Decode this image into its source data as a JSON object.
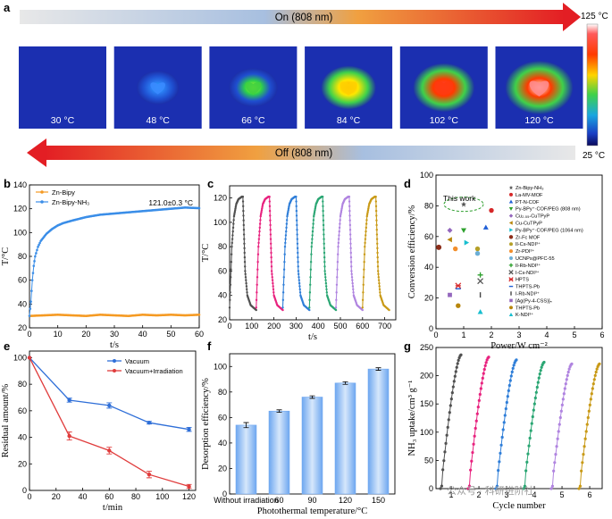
{
  "panel_a": {
    "letter": "a",
    "on_label": "On (808 nm)",
    "off_label": "Off (808 nm)",
    "colorbar_max": "125 °C",
    "colorbar_min": "25 °C",
    "tiles": [
      {
        "temp": "30 °C",
        "level": 0.0
      },
      {
        "temp": "48 °C",
        "level": 0.2
      },
      {
        "temp": "66 °C",
        "level": 0.4
      },
      {
        "temp": "84 °C",
        "level": 0.6
      },
      {
        "temp": "102 °C",
        "level": 0.8
      },
      {
        "temp": "120 °C",
        "level": 1.0
      }
    ]
  },
  "watermark": "公众号 · 科研进阶社",
  "chart_data": [
    {
      "panel": "b",
      "type": "line",
      "xlabel": "t/s",
      "ylabel": "T/°C",
      "xlim": [
        0,
        60
      ],
      "ylim": [
        20,
        140
      ],
      "xticks": [
        "0",
        "10",
        "20",
        "30",
        "40",
        "50",
        "60"
      ],
      "yticks": [
        "20",
        "40",
        "60",
        "80",
        "100",
        "120",
        "140"
      ],
      "annotation": "121.0±0.3 °C",
      "series": [
        {
          "name": "Zn-Bipy",
          "color": "#f59a23",
          "x": [
            0,
            5,
            10,
            15,
            20,
            25,
            30,
            35,
            40,
            45,
            50,
            55,
            60
          ],
          "y": [
            30,
            30.5,
            31,
            30.5,
            30,
            31,
            30.5,
            30,
            31,
            30.5,
            31,
            30.5,
            31
          ]
        },
        {
          "name": "Zn-Bipy-NH₃",
          "color": "#3b8ee8",
          "x": [
            0,
            0.5,
            1,
            1.5,
            2,
            3,
            4,
            5,
            6,
            8,
            10,
            12,
            15,
            20,
            25,
            30,
            35,
            40,
            45,
            50,
            55,
            60
          ],
          "y": [
            30,
            42,
            60,
            72,
            80,
            88,
            93,
            96,
            99,
            103,
            106,
            108,
            110,
            113,
            115,
            116,
            117,
            118,
            119,
            120,
            121,
            120.5
          ]
        }
      ]
    },
    {
      "panel": "c",
      "type": "line",
      "xlabel": "t/s",
      "ylabel": "T/°C",
      "xlim": [
        0,
        750
      ],
      "ylim": [
        20,
        130
      ],
      "xticks": [
        "0",
        "100",
        "200",
        "300",
        "400",
        "500",
        "600",
        "700"
      ],
      "yticks": [
        "20",
        "40",
        "60",
        "80",
        "100",
        "120"
      ],
      "cycles": [
        {
          "start": 0,
          "color": "#505050"
        },
        {
          "start": 120,
          "color": "#e8237f"
        },
        {
          "start": 240,
          "color": "#2f7ed8"
        },
        {
          "start": 360,
          "color": "#2aa673"
        },
        {
          "start": 480,
          "color": "#b084e0"
        },
        {
          "start": 600,
          "color": "#c99a17"
        }
      ],
      "cycle_profile": {
        "t": [
          0,
          10,
          20,
          30,
          40,
          55,
          60,
          65,
          70,
          80,
          95,
          120
        ],
        "T": [
          30,
          80,
          105,
          115,
          119,
          121,
          121,
          90,
          60,
          40,
          32,
          28
        ]
      }
    },
    {
      "panel": "d",
      "type": "scatter",
      "xlabel": "Power/W cm⁻²",
      "ylabel": "Conversion efficiency/%",
      "xlim": [
        0,
        6
      ],
      "ylim": [
        0,
        100
      ],
      "xticks": [
        "0",
        "1",
        "2",
        "3",
        "4",
        "5",
        "6"
      ],
      "yticks": [
        "0",
        "20",
        "40",
        "60",
        "80",
        "100"
      ],
      "annotation": "This work",
      "points": [
        {
          "name": "Zn-Bipy-NH₃",
          "x": 1.0,
          "y": 81,
          "color": "#555555",
          "marker": "star"
        },
        {
          "name": "La-MV-MOF",
          "x": 2.0,
          "y": 77,
          "color": "#d62728",
          "marker": "circle"
        },
        {
          "name": "PT-N-COF",
          "x": 1.8,
          "y": 66,
          "color": "#1f5fd6",
          "marker": "triangle"
        },
        {
          "name": "Py-BPy⁺·COF/PEG (808 nm)",
          "x": 1.0,
          "y": 64,
          "color": "#2ca02c",
          "marker": "tri-down"
        },
        {
          "name": "Cu₂.₅₅-CuTPyP",
          "x": 0.5,
          "y": 64,
          "color": "#9467bd",
          "marker": "diamond"
        },
        {
          "name": "Cu-CuTPyP",
          "x": 0.5,
          "y": 58,
          "color": "#b8860b",
          "marker": "tri-left"
        },
        {
          "name": "Py-BPy⁺·COF/PEG (1064 nm)",
          "x": 1.1,
          "y": 56,
          "color": "#17becf",
          "marker": "tri-right"
        },
        {
          "name": "Zr-Fc MOF",
          "x": 0.1,
          "y": 53,
          "color": "#8c2d19",
          "marker": "hexagon"
        },
        {
          "name": "Il-Cs-NDI³⁺",
          "x": 1.5,
          "y": 52,
          "color": "#b5a028",
          "marker": "circle"
        },
        {
          "name": "Zr-PDI³⁺",
          "x": 0.7,
          "y": 52,
          "color": "#f28e2b",
          "marker": "circle"
        },
        {
          "name": "UCNPs@PFC-55",
          "x": 1.5,
          "y": 49,
          "color": "#6baed6",
          "marker": "circle"
        },
        {
          "name": "Il-Rb-NDI³⁺",
          "x": 1.6,
          "y": 35,
          "color": "#2ca02c",
          "marker": "plus"
        },
        {
          "name": "I-Cs-NDI³⁺",
          "x": 1.6,
          "y": 31,
          "color": "#555555",
          "marker": "x"
        },
        {
          "name": "HPTS",
          "x": 0.8,
          "y": 28,
          "color": "#d62728",
          "marker": "asterisk"
        },
        {
          "name": "THPTS-Pb",
          "x": 0.8,
          "y": 26,
          "color": "#1f5fd6",
          "marker": "hline"
        },
        {
          "name": "I-Rb-NDI³⁺",
          "x": 1.6,
          "y": 22,
          "color": "#444444",
          "marker": "vline"
        },
        {
          "name": "[Ag(Py-4-CSS)]ₙ",
          "x": 0.5,
          "y": 22,
          "color": "#9467bd",
          "marker": "square"
        },
        {
          "name": "THPTS-Pb",
          "x": 0.8,
          "y": 15,
          "color": "#b8860b",
          "marker": "circle"
        },
        {
          "name": "K-NDI³⁺",
          "x": 1.6,
          "y": 11,
          "color": "#17becf",
          "marker": "triangle"
        }
      ]
    },
    {
      "panel": "e",
      "type": "line",
      "xlabel": "t/min",
      "ylabel": "Residual amount/%",
      "xlim": [
        0,
        125
      ],
      "ylim": [
        0,
        105
      ],
      "xticks": [
        "0",
        "20",
        "40",
        "60",
        "80",
        "100",
        "120"
      ],
      "yticks": [
        "0",
        "20",
        "40",
        "60",
        "80",
        "100"
      ],
      "series": [
        {
          "name": "Vacuum",
          "color": "#2f6fd8",
          "x": [
            0,
            30,
            60,
            90,
            120
          ],
          "y": [
            100,
            68,
            64,
            51,
            46
          ],
          "err": [
            0,
            1.5,
            2,
            1,
            1.5
          ]
        },
        {
          "name": "Vacuum+Irradiation",
          "color": "#e03c3c",
          "x": [
            0,
            30,
            60,
            90,
            120
          ],
          "y": [
            100,
            41,
            30,
            12,
            3
          ],
          "err": [
            0,
            3,
            2.5,
            2.5,
            1.5
          ]
        }
      ]
    },
    {
      "panel": "f",
      "type": "bar",
      "xlabel": "Photothermal temperature/°C",
      "ylabel": "Desorption efficiency/%",
      "ylim": [
        0,
        110
      ],
      "yticks": [
        "0",
        "20",
        "40",
        "60",
        "80",
        "100"
      ],
      "categories": [
        "Without irradiation",
        "60",
        "90",
        "120",
        "150"
      ],
      "values": [
        54,
        65,
        76,
        87,
        98
      ],
      "err": [
        2,
        1,
        1,
        1,
        1
      ]
    },
    {
      "panel": "g",
      "type": "line",
      "xlabel": "Cycle number",
      "ylabel": "NH₃ uptake/cm³ g⁻¹",
      "ylim": [
        0,
        250
      ],
      "xticks": [
        "1",
        "2",
        "3",
        "4",
        "5",
        "6"
      ],
      "yticks": [
        "0",
        "50",
        "100",
        "150",
        "200",
        "250"
      ],
      "cycles": [
        {
          "name": "1",
          "color": "#505050",
          "max": 237
        },
        {
          "name": "2",
          "color": "#e8237f",
          "max": 233
        },
        {
          "name": "3",
          "color": "#2f7ed8",
          "max": 228
        },
        {
          "name": "4",
          "color": "#2aa673",
          "max": 224
        },
        {
          "name": "5",
          "color": "#b084e0",
          "max": 221
        },
        {
          "name": "6",
          "color": "#c99a17",
          "max": 221
        }
      ]
    }
  ]
}
